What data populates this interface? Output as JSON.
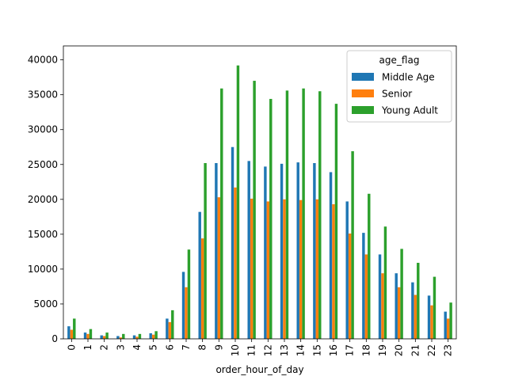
{
  "chart_data": {
    "type": "bar",
    "title": "",
    "xlabel": "order_hour_of_day",
    "ylabel": "",
    "ylim": [
      0,
      42000
    ],
    "yticks": [
      0,
      5000,
      10000,
      15000,
      20000,
      25000,
      30000,
      35000,
      40000
    ],
    "categories": [
      "0",
      "1",
      "2",
      "3",
      "4",
      "5",
      "6",
      "7",
      "8",
      "9",
      "10",
      "11",
      "12",
      "13",
      "14",
      "15",
      "16",
      "17",
      "18",
      "19",
      "20",
      "21",
      "22",
      "23"
    ],
    "legend": {
      "title": "age_flag",
      "placement": "top-right"
    },
    "grid": false,
    "series": [
      {
        "name": "Middle Age",
        "color": "#1f77b4",
        "values": [
          1800,
          900,
          500,
          400,
          500,
          800,
          2900,
          9600,
          18200,
          25200,
          27500,
          25500,
          24700,
          25100,
          25300,
          25200,
          23900,
          19700,
          15200,
          12100,
          9400,
          8100,
          6200,
          3900
        ]
      },
      {
        "name": "Senior",
        "color": "#ff7f0e",
        "values": [
          1300,
          700,
          400,
          200,
          300,
          600,
          2400,
          7400,
          14400,
          20300,
          21700,
          20100,
          19700,
          20000,
          19900,
          20000,
          19300,
          15100,
          12100,
          9400,
          7400,
          6300,
          4800,
          2900
        ]
      },
      {
        "name": "Young Adult",
        "color": "#2ca02c",
        "values": [
          2900,
          1400,
          900,
          700,
          700,
          1100,
          4100,
          12800,
          25200,
          35900,
          39200,
          37000,
          34400,
          35600,
          35900,
          35500,
          33700,
          26900,
          20800,
          16100,
          12900,
          10900,
          8900,
          5200
        ]
      }
    ]
  }
}
